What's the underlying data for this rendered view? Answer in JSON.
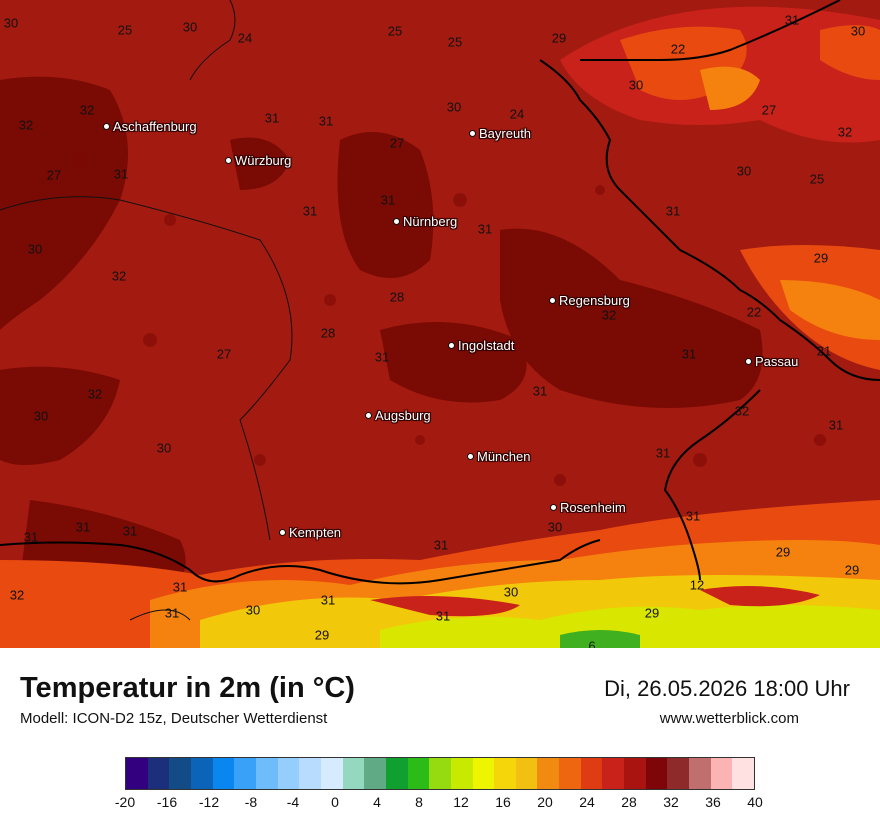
{
  "map": {
    "cities": [
      {
        "name": "Aschaffenburg"
      },
      {
        "name": "Würzburg"
      },
      {
        "name": "Bayreuth"
      },
      {
        "name": "Nürnberg"
      },
      {
        "name": "Regensburg"
      },
      {
        "name": "Ingolstadt"
      },
      {
        "name": "Passau"
      },
      {
        "name": "Augsburg"
      },
      {
        "name": "München"
      },
      {
        "name": "Rosenheim"
      },
      {
        "name": "Kempten"
      }
    ],
    "values": [
      "30",
      "25",
      "30",
      "24",
      "25",
      "25",
      "29",
      "31",
      "22",
      "30",
      "32",
      "32",
      "31",
      "31",
      "30",
      "24",
      "27",
      "30",
      "32",
      "31",
      "27",
      "31",
      "31",
      "27",
      "30",
      "25",
      "31",
      "31",
      "30",
      "32",
      "28",
      "29",
      "32",
      "28",
      "31",
      "22",
      "31",
      "32",
      "21",
      "31",
      "27",
      "30",
      "32",
      "31",
      "31",
      "30",
      "31",
      "31",
      "31",
      "31",
      "31",
      "31",
      "30",
      "29",
      "31",
      "29",
      "32",
      "31",
      "30",
      "29",
      "30",
      "31",
      "12",
      "6",
      "29"
    ],
    "colors": {
      "base": "#a31a10",
      "dark": "#7a0a04",
      "red": "#c8221a",
      "orange": "#e84a10",
      "lightorange": "#f5820e",
      "yellow": "#f2c80a",
      "lime": "#d9e600",
      "green": "#40b020"
    }
  },
  "footer": {
    "title": "Temperatur in 2m (in °C)",
    "model": "Modell: ICON-D2 15z, Deutscher Wetterdienst",
    "datetime": "Di, 26.05.2026 18:00 Uhr",
    "website": "www.wetterblick.com"
  },
  "legend": {
    "colors": [
      "#33007f",
      "#1c2f7c",
      "#124b86",
      "#0b64b8",
      "#0a86f0",
      "#3aa1f8",
      "#6fbcfb",
      "#95cdfc",
      "#b7dcfd",
      "#d6ebfd",
      "#94d8c0",
      "#60aa85",
      "#10a030",
      "#2bbc18",
      "#96da10",
      "#c8ea00",
      "#eef500",
      "#f4d60a",
      "#f2c010",
      "#f08a10",
      "#ee6610",
      "#e03c14",
      "#c8221a",
      "#aa1410",
      "#7e0608",
      "#8e2a2a",
      "#c06e6e",
      "#fbb3b3",
      "#ffe1e1"
    ],
    "ticks": [
      "-20",
      "-16",
      "-12",
      "-8",
      "-4",
      "0",
      "4",
      "8",
      "12",
      "16",
      "20",
      "24",
      "28",
      "32",
      "36",
      "40"
    ]
  }
}
